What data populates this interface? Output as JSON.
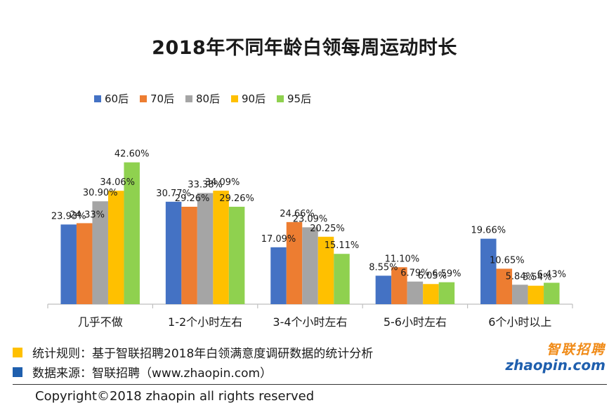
{
  "colors": {
    "60后": "#4472c4",
    "70后": "#ed7d31",
    "80后": "#a5a5a5",
    "90后": "#ffc000",
    "95后": "#8fd14f",
    "note1_square": "#ffc000",
    "note2_square": "#1f5fae"
  },
  "chart_data": {
    "type": "bar",
    "title": "2018年不同年龄白领每周运动时长",
    "xlabel": "",
    "ylabel": "",
    "ylim": [
      0,
      45
    ],
    "grid": false,
    "legend_position": "top-left",
    "categories": [
      "几乎不做",
      "1-2个小时左右",
      "3-4个小时左右",
      "5-6小时左右",
      "6个小时以上"
    ],
    "series": [
      {
        "name": "60后",
        "values": [
          23.93,
          30.77,
          17.09,
          8.55,
          19.66
        ],
        "labels": [
          "23.93%",
          "30.77%",
          "17.09%",
          "8.55%",
          "19.66%"
        ]
      },
      {
        "name": "70后",
        "values": [
          24.33,
          29.26,
          24.66,
          11.1,
          10.65
        ],
        "labels": [
          "24.33%",
          "29.26%",
          "24.66%",
          "11.10%",
          "10.65%"
        ]
      },
      {
        "name": "80后",
        "values": [
          30.9,
          33.38,
          23.09,
          6.79,
          5.84
        ],
        "labels": [
          "30.90%",
          "33.38%",
          "23.09%",
          "6.79%",
          "5.84%"
        ]
      },
      {
        "name": "90后",
        "values": [
          34.06,
          34.09,
          20.25,
          6.05,
          5.54
        ],
        "labels": [
          "34.06%",
          "34.09%",
          "20.25%",
          "6.05%",
          "5.54%"
        ]
      },
      {
        "name": "95后",
        "values": [
          42.6,
          29.26,
          15.11,
          6.59,
          6.43
        ],
        "labels": [
          "42.60%",
          "29.26%",
          "15.11%",
          "6.59%",
          "6.43%"
        ]
      }
    ]
  },
  "notes": {
    "rule": "统计规则：基于智联招聘2018年白领满意度调研数据的统计分析",
    "source": "数据来源：智联招聘（www.zhaopin.com）"
  },
  "logo": {
    "cn": "智联招聘",
    "en": "zhaopin.com"
  },
  "copyright": "Copyright©2018 zhaopin all rights reserved"
}
